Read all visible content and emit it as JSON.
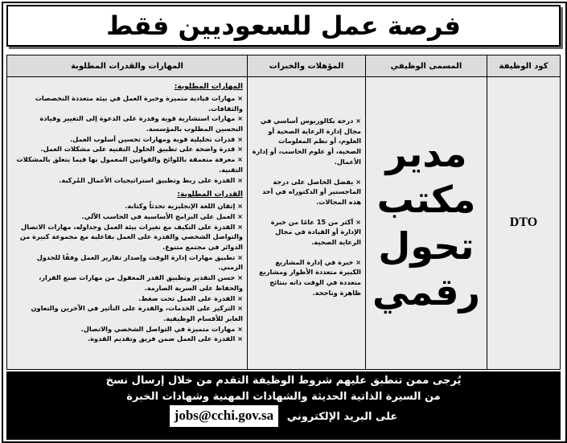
{
  "title": "فرصة عمل للسعوديين فقط",
  "headers": {
    "code": "كود الوظيفة",
    "job_title": "المسمى الوظيفي",
    "qualifications": "المؤهلات والخبرات",
    "skills": "المهارات والقدرات المطلوبة"
  },
  "job": {
    "code": "DTO",
    "title_lines": [
      "مدير",
      "مكتب",
      "تحول",
      "رقمي"
    ],
    "qualifications": [
      "× درجة بكالوريوس أساسي في مجال إدارة الرعاية الصحية أو العلوم، أو نظم المعلومات الصحية، أو علوم الحاسب، أو إدارة الأعمال.",
      "× يفضل الحاصل على درجة الماجستير أو الدكتوراه في أحد هذه المجالات.",
      "× أكثر من 15 عامًا من خبرة الإدارة أو القيادة في مجال الرعاية الصحية.",
      "× خبرة في إدارة المشاريع الكبيرة متعددة الأطوار ومشاريع متعددة في الوقت ذاته بنتائج ظاهرة وناجحة."
    ],
    "skills_heading": "المهارات المطلوبة:",
    "skills": [
      "مهارات قيادية متميزة وخبرة العمل في بيئة متعددة التخصصات والثقافات.",
      "مهارات استشارية قوية وقدرة على الدعوة إلى التغيير وقيادة التحسين المطلوب بالمؤسسة.",
      "قدرات تحليلية قوية ومهارات تحسين أسلوب العمل.",
      "قدرة واضحة على تطبيق الحلول التقنية على مشكلات العمل.",
      "معرفة متعمقة باللوائح والقوانين المعمول بها فيما يتعلق بالمشكلات التقنية.",
      "القدرة على ربط وتطبيق استراتيجيات الأعمال المُركبة."
    ],
    "abilities_heading": "القدرات المطلوبة:",
    "abilities": [
      "إتقان اللغة الإنجليزية تحدثاً وكتابة.",
      "العمل على البرامج الأساسية في الحاسب الآلي.",
      "القدرة على التكيف مع تغيرات بيئة العمل وجداوله، مهارات الاتصال والتواصل الشخصي والقدرة على العمل بفاعلية مع مجموعة كبيرة من الدوائر في مجتمع متنوع.",
      "تطبيق مهارات إدارة الوقت وإصدار تقارير العمل وفقًا للجدول الزمني.",
      "حسن التقدير وتطبيق القدر المعقول من مهارات صنع القرار، والحفاظ على السرية الصارمة.",
      "القدرة على العمل تحت ضغط.",
      "التركيز على الخدمات، والقدرة على التأثير في الآخرين والتعاون العابر للأقسام الوظيفية.",
      "مهارات متميزة في التواصل الشخصي والاتصال.",
      "القدرة على العمل ضمن فريق وتقديم القدوة."
    ]
  },
  "footer": {
    "line1": "يُرجى ممن تنطبق عليهم شروط الوظيفة التقدم من خلال إرسال نسخ",
    "line2": "من السيرة الذاتية الحديثة والشهادات المهنية وشهادات الخبرة",
    "line3": "على البريد الإلكتروني",
    "email": "jobs@cchi.gov.sa"
  }
}
